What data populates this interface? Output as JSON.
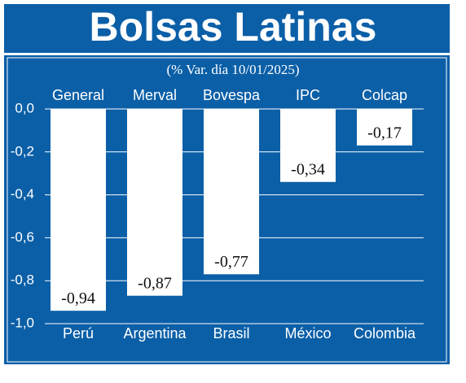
{
  "chart_data": {
    "type": "bar",
    "title": "Bolsas Latinas",
    "subtitle": "(% Var. día 10/01/2025)",
    "index_names": [
      "General",
      "Merval",
      "Bovespa",
      "IPC",
      "Colcap"
    ],
    "categories": [
      "Perú",
      "Argentina",
      "Brasil",
      "México",
      "Colombia"
    ],
    "values": [
      -0.94,
      -0.87,
      -0.77,
      -0.34,
      -0.17
    ],
    "value_labels": [
      "-0,94",
      "-0,87",
      "-0,77",
      "-0,34",
      "-0,17"
    ],
    "color": "#ffffff",
    "ylim": [
      -1,
      0
    ],
    "yticks": [
      {
        "value": 0,
        "label": "0,0"
      },
      {
        "value": -0.2,
        "label": "-0,2"
      },
      {
        "value": -0.4,
        "label": "-0,4"
      },
      {
        "value": -0.6,
        "label": "-0,6"
      },
      {
        "value": -0.8,
        "label": "-0,8"
      },
      {
        "value": -1,
        "label": "-1,0"
      }
    ],
    "grid": true
  }
}
